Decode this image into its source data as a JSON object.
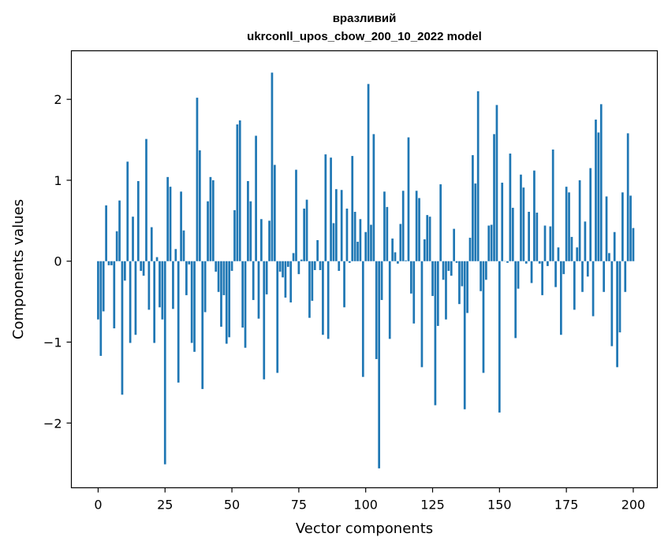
{
  "chart_data": {
    "type": "bar",
    "title": "вразливий",
    "subtitle": "ukrconll_upos_cbow_200_10_2022 model",
    "xlabel": "Vector components",
    "ylabel": "Components values",
    "xlim": [
      -10,
      209
    ],
    "ylim": [
      -2.8,
      2.6
    ],
    "xticks": [
      0,
      25,
      50,
      75,
      100,
      125,
      150,
      175,
      200
    ],
    "yticks": [
      -2,
      -1,
      0,
      1,
      2
    ],
    "ytick_labels": [
      "−2",
      "−1",
      "0",
      "1",
      "2"
    ],
    "bar_color": "#1f77b4",
    "values": [
      -0.72,
      -1.17,
      -0.62,
      0.69,
      -0.05,
      -0.05,
      -0.83,
      0.37,
      0.75,
      -1.65,
      -0.24,
      1.23,
      -1.01,
      0.55,
      -0.91,
      0.99,
      -0.12,
      -0.18,
      1.51,
      -0.6,
      0.42,
      -1.01,
      0.05,
      -0.57,
      -0.72,
      -2.51,
      1.04,
      0.92,
      -0.59,
      0.15,
      -1.5,
      0.86,
      0.38,
      -0.42,
      -0.04,
      -1.01,
      -1.12,
      2.02,
      1.37,
      -1.58,
      -0.63,
      0.74,
      1.04,
      1.0,
      -0.13,
      -0.38,
      -0.81,
      -0.42,
      -1.02,
      -0.94,
      -0.12,
      0.63,
      1.69,
      1.74,
      -0.82,
      -1.07,
      0.99,
      0.74,
      -0.48,
      1.55,
      -0.71,
      0.52,
      -1.46,
      -0.41,
      0.5,
      2.33,
      1.19,
      -1.38,
      -0.13,
      -0.2,
      -0.45,
      -0.07,
      -0.51,
      0.1,
      1.13,
      -0.16,
      0.02,
      0.65,
      0.76,
      -0.7,
      -0.49,
      -0.11,
      0.26,
      -0.11,
      -0.91,
      1.32,
      -0.96,
      1.28,
      0.47,
      0.89,
      -0.12,
      0.88,
      -0.57,
      0.65,
      -0.02,
      1.3,
      0.61,
      0.24,
      0.52,
      -1.43,
      0.36,
      2.19,
      0.45,
      1.57,
      -1.21,
      -2.56,
      -0.48,
      0.86,
      0.67,
      -0.96,
      0.28,
      0.11,
      -0.03,
      0.46,
      0.87,
      0.01,
      1.53,
      -0.4,
      -0.77,
      0.87,
      0.78,
      -1.31,
      0.27,
      0.57,
      0.55,
      -0.43,
      -1.78,
      -0.8,
      0.95,
      -0.23,
      -0.72,
      -0.12,
      -0.18,
      0.4,
      -0.02,
      -0.53,
      -0.31,
      -1.83,
      -0.64,
      0.29,
      1.31,
      0.96,
      2.1,
      -0.37,
      -1.38,
      -0.23,
      0.44,
      0.45,
      1.57,
      1.93,
      -1.87,
      0.97,
      0.0,
      -0.02,
      1.33,
      0.66,
      -0.95,
      -0.34,
      1.07,
      0.91,
      -0.03,
      0.61,
      -0.27,
      1.12,
      0.6,
      -0.03,
      -0.42,
      0.44,
      -0.06,
      0.43,
      1.38,
      -0.32,
      0.17,
      -0.91,
      -0.16,
      0.92,
      0.85,
      0.3,
      -0.6,
      0.17,
      1.0,
      -0.38,
      0.49,
      -0.19,
      1.15,
      -0.68,
      1.75,
      1.59,
      1.94,
      -0.38,
      0.8,
      0.1,
      -1.05,
      0.36,
      -1.31,
      -0.88,
      0.85,
      -0.38,
      1.58,
      0.81,
      0.41
    ]
  }
}
